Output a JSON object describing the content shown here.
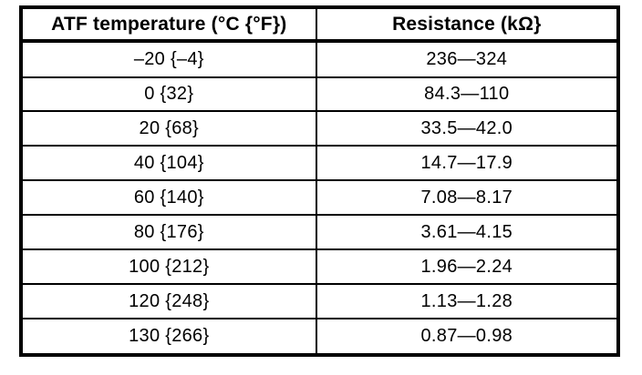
{
  "colors": {
    "ink": "#000000",
    "paper": "#ffffff"
  },
  "table": {
    "columns": [
      "ATF temperature (°C {°F})",
      "Resistance (kΩ}"
    ],
    "rows": [
      [
        "–20 {–4}",
        "236—324"
      ],
      [
        "0 {32}",
        "84.3—110"
      ],
      [
        "20 {68}",
        "33.5—42.0"
      ],
      [
        "40 {104}",
        "14.7—17.9"
      ],
      [
        "60 {140}",
        "7.08—8.17"
      ],
      [
        "80 {176}",
        "3.61—4.15"
      ],
      [
        "100 {212}",
        "1.96—2.24"
      ],
      [
        "120 {248}",
        "1.13—1.28"
      ],
      [
        "130 {266}",
        "0.87—0.98"
      ]
    ]
  }
}
